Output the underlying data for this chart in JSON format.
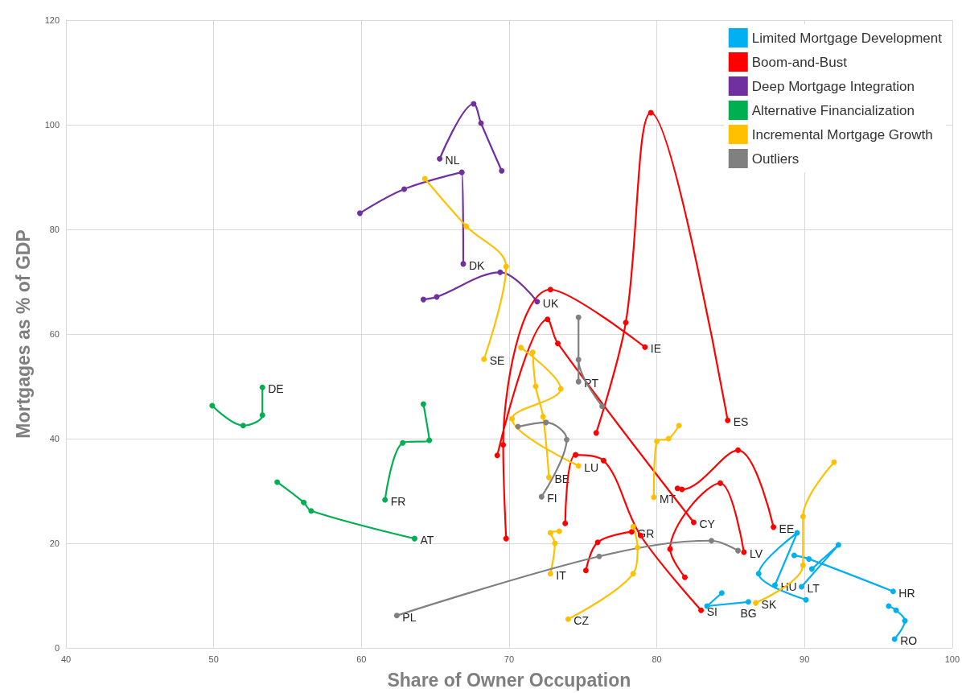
{
  "chart_data": {
    "type": "line",
    "xlabel": "Share of Owner Occupation",
    "ylabel": "Mortgages as % of GDP",
    "xlim": [
      40,
      100
    ],
    "xticks": [
      40,
      50,
      60,
      70,
      80,
      90,
      100
    ],
    "ylim": [
      0,
      120
    ],
    "yticks": [
      0,
      20,
      40,
      60,
      80,
      100,
      120
    ],
    "grid": true,
    "legend": "top right",
    "marker": "circle",
    "line_style": "solid",
    "series": [
      {
        "name": "Limited Mortgage Development",
        "color": "#00b0f0",
        "x": [
          96.0,
          90.3,
          89.3,
          null,
          89.8,
          92.3,
          90.5,
          null,
          88.0,
          89.5,
          86.9,
          90.1,
          null,
          86.2,
          83.4,
          84.4,
          null,
          96.1,
          96.8,
          96.2,
          95.7
        ],
        "values": [
          10.8,
          17.0,
          17.7,
          null,
          11.7,
          19.7,
          15.1,
          null,
          12.0,
          22.0,
          14.2,
          9.2,
          null,
          8.8,
          8.0,
          10.5,
          null,
          1.7,
          5.2,
          7.2,
          8.0
        ]
      },
      {
        "name": "Boom-and-Bust",
        "color": "#ff0000",
        "x": [
          84.8,
          79.6,
          77.9,
          75.9,
          null,
          79.2,
          72.8,
          69.6,
          69.8,
          null,
          82.5,
          73.3,
          72.6,
          69.2,
          null,
          85.9,
          84.3,
          80.9,
          81.9,
          null,
          87.9,
          85.5,
          81.7,
          81.4,
          null,
          83.0,
          78.9,
          76.4,
          74.5,
          73.8,
          null,
          78.3,
          76.0,
          75.2
        ],
        "values": [
          43.5,
          102.3,
          62.2,
          41.1,
          null,
          57.5,
          68.5,
          38.8,
          20.9,
          null,
          24.0,
          58.2,
          62.8,
          36.8,
          null,
          18.3,
          31.5,
          18.9,
          13.5,
          null,
          23.1,
          37.8,
          30.3,
          30.5,
          null,
          7.2,
          21.5,
          35.8,
          36.9,
          23.8,
          null,
          22.2,
          20.2,
          14.8
        ]
      },
      {
        "name": "Deep Mortgage Integration",
        "color": "#7030a0",
        "x": [
          65.3,
          67.6,
          68.1,
          69.5,
          null,
          66.9,
          66.8,
          62.9,
          59.9,
          null,
          71.9,
          69.4,
          65.1,
          64.2
        ],
        "values": [
          93.5,
          104.0,
          100.3,
          91.2,
          null,
          73.4,
          90.9,
          87.7,
          83.1,
          null,
          66.2,
          71.8,
          67.1,
          66.6
        ]
      },
      {
        "name": "Alternative Financialization",
        "color": "#00b050",
        "x": [
          53.3,
          53.3,
          52.0,
          49.9,
          null,
          61.6,
          62.8,
          64.6,
          64.2,
          null,
          63.6,
          56.6,
          56.1,
          54.3
        ],
        "values": [
          49.8,
          44.5,
          42.5,
          46.3,
          null,
          28.3,
          39.2,
          39.7,
          46.6,
          null,
          20.9,
          26.2,
          27.8,
          31.7
        ]
      },
      {
        "name": "Incremental Mortgage Growth",
        "color": "#ffc000",
        "x": [
          68.3,
          69.8,
          67.1,
          64.3,
          null,
          74.7,
          70.2,
          73.5,
          70.8,
          null,
          72.7,
          72.3,
          71.8,
          71.6,
          null,
          72.8,
          73.1,
          72.8,
          73.4,
          null,
          79.8,
          80.0,
          80.8,
          81.5,
          null,
          86.7,
          89.9,
          89.9,
          92.0,
          null,
          74.0,
          78.4,
          78.7,
          78.4
        ],
        "values": [
          55.2,
          72.9,
          80.6,
          89.7,
          null,
          34.8,
          43.8,
          49.5,
          57.4,
          null,
          32.6,
          44.2,
          50.0,
          56.5,
          null,
          14.2,
          20.0,
          22.0,
          22.3,
          null,
          28.8,
          39.5,
          40.0,
          42.5,
          null,
          8.6,
          15.8,
          25.1,
          35.5,
          null,
          5.5,
          14.2,
          19.2,
          23.2
        ]
      },
      {
        "name": "Outliers",
        "color": "#808080",
        "x": [
          74.7,
          74.7,
          74.7,
          76.3,
          null,
          72.2,
          73.9,
          72.5,
          70.6,
          null,
          62.4,
          76.1,
          83.7,
          85.5
        ],
        "values": [
          50.9,
          63.2,
          55.1,
          46.2,
          null,
          28.9,
          39.8,
          43.1,
          42.3,
          null,
          6.2,
          17.5,
          20.5,
          18.6
        ]
      }
    ],
    "annotations": [
      {
        "text": "NL",
        "x": 65.3,
        "y": 93.5
      },
      {
        "text": "DK",
        "x": 66.9,
        "y": 73.4
      },
      {
        "text": "UK",
        "x": 71.9,
        "y": 66.2
      },
      {
        "text": "DE",
        "x": 53.3,
        "y": 49.8
      },
      {
        "text": "FR",
        "x": 61.6,
        "y": 28.3
      },
      {
        "text": "AT",
        "x": 63.6,
        "y": 20.9
      },
      {
        "text": "SE",
        "x": 68.3,
        "y": 55.2
      },
      {
        "text": "LU",
        "x": 74.7,
        "y": 34.8
      },
      {
        "text": "BE",
        "x": 72.7,
        "y": 32.6
      },
      {
        "text": "IT",
        "x": 72.8,
        "y": 14.2
      },
      {
        "text": "MT",
        "x": 79.8,
        "y": 28.8
      },
      {
        "text": "SK",
        "x": 86.7,
        "y": 8.6
      },
      {
        "text": "CZ",
        "x": 74.0,
        "y": 5.5
      },
      {
        "text": "PT",
        "x": 74.7,
        "y": 50.9
      },
      {
        "text": "FI",
        "x": 72.2,
        "y": 28.9
      },
      {
        "text": "PL",
        "x": 62.4,
        "y": 6.2
      },
      {
        "text": "ES",
        "x": 84.8,
        "y": 43.5
      },
      {
        "text": "IE",
        "x": 79.2,
        "y": 57.5
      },
      {
        "text": "CY",
        "x": 82.5,
        "y": 24.0
      },
      {
        "text": "LV",
        "x": 85.9,
        "y": 18.3
      },
      {
        "text": "EE",
        "x": 87.9,
        "y": 23.1
      },
      {
        "text": "SI",
        "x": 83.0,
        "y": 7.2
      },
      {
        "text": "GR",
        "x": 78.3,
        "y": 22.2
      },
      {
        "text": "HR",
        "x": 96.0,
        "y": 10.8
      },
      {
        "text": "LT",
        "x": 89.8,
        "y": 11.7
      },
      {
        "text": "HU",
        "x": 88.0,
        "y": 12.0
      },
      {
        "text": "BG",
        "x": 86.2,
        "y": 8.8
      },
      {
        "text": "RO",
        "x": 96.1,
        "y": 1.7
      }
    ]
  }
}
